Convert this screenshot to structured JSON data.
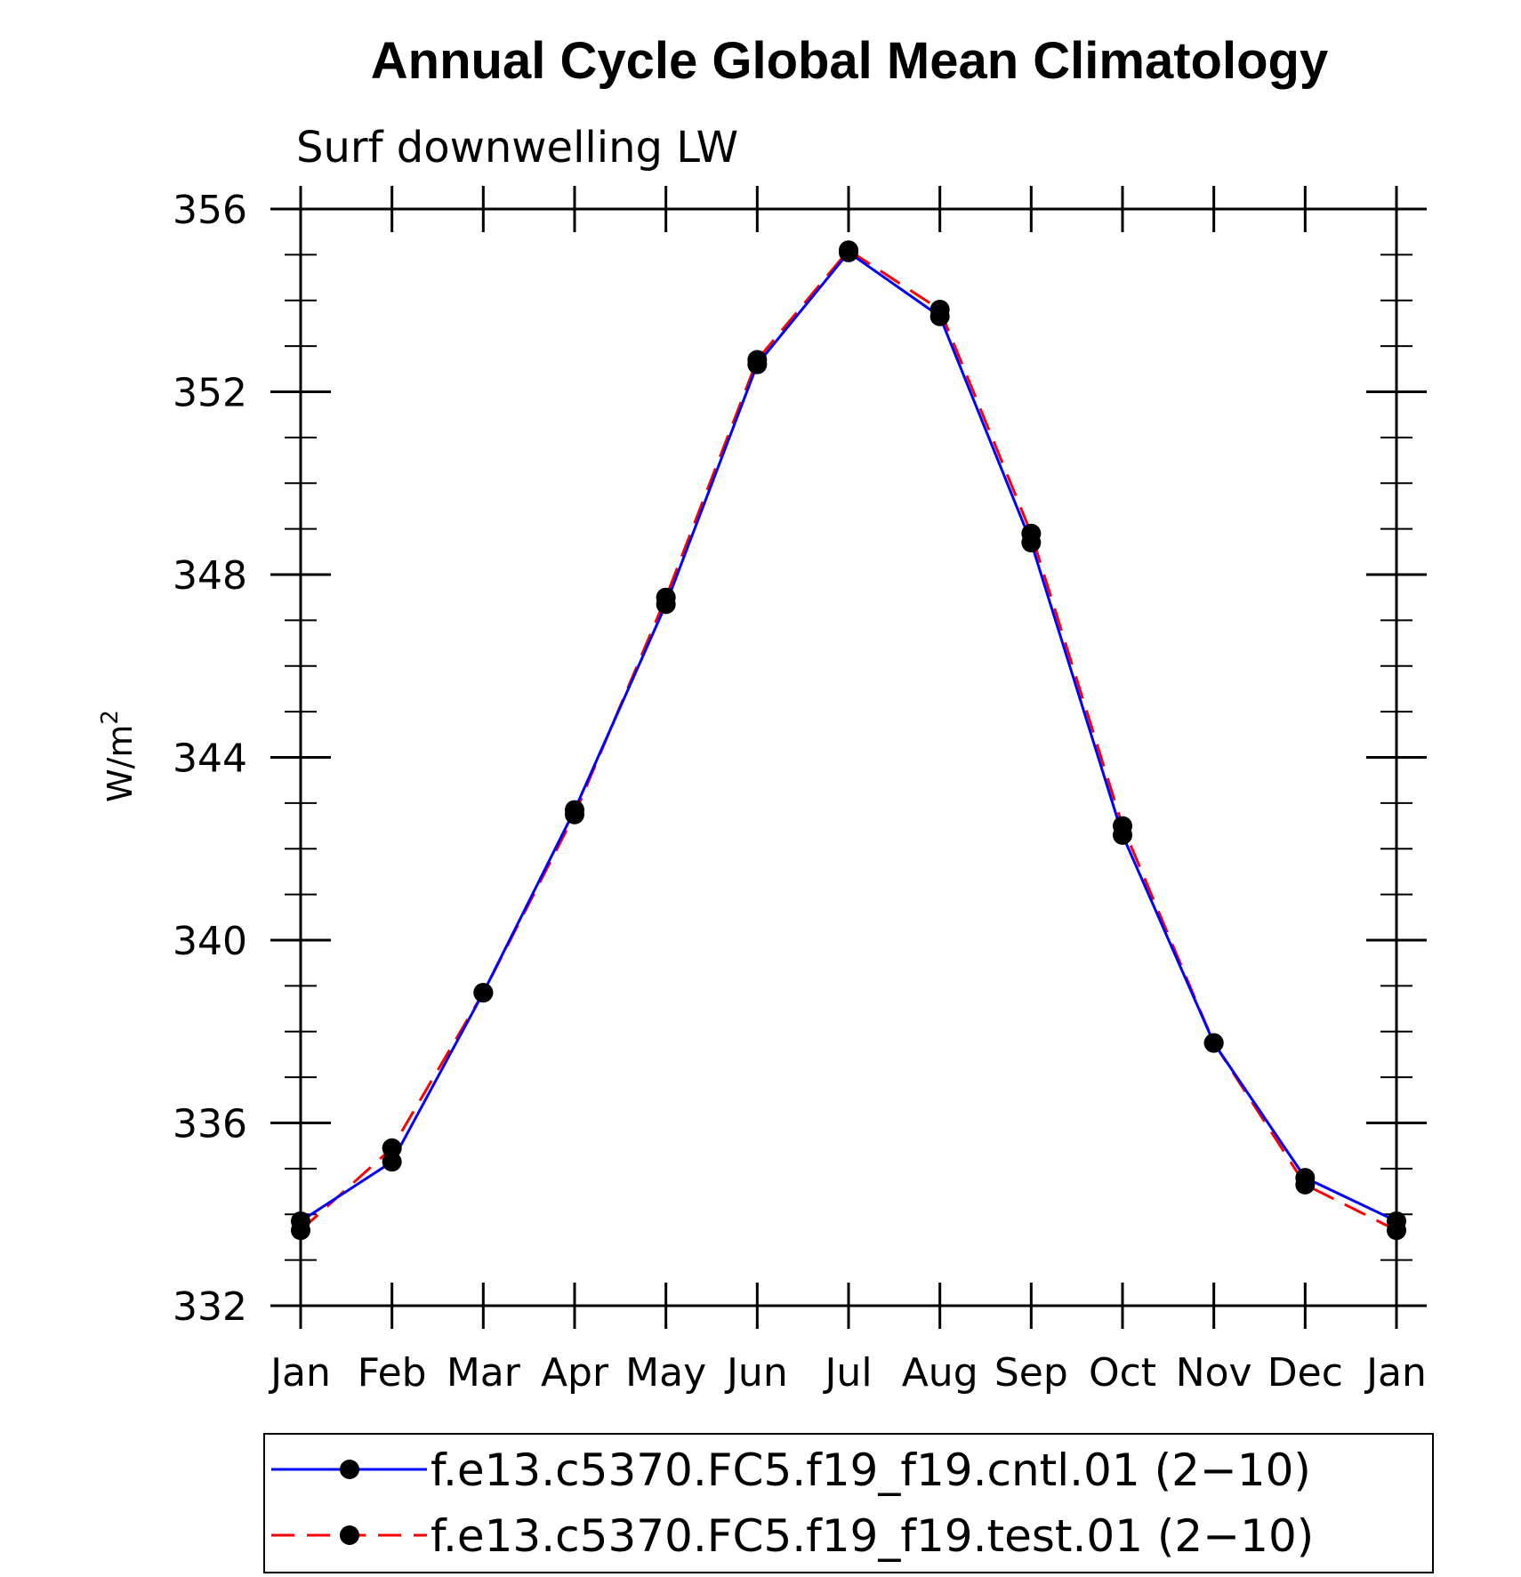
{
  "chart_data": {
    "type": "line",
    "title": "Annual Cycle Global Mean Climatology",
    "subtitle": "Surf downwelling LW",
    "ylabel_base": "W/m",
    "ylabel_sup": "2",
    "xlabel": "",
    "ylim": [
      332,
      356
    ],
    "yticks": [
      332,
      336,
      340,
      344,
      348,
      352,
      356
    ],
    "categories": [
      "Jan",
      "Feb",
      "Mar",
      "Apr",
      "May",
      "Jun",
      "Jul",
      "Aug",
      "Sep",
      "Oct",
      "Nov",
      "Dec",
      "Jan"
    ],
    "series": [
      {
        "name": "f.e13.c5370.FC5.f19_f19.cntl.01 (2−10)",
        "color": "#0000ff",
        "dash": "solid",
        "values": [
          333.85,
          335.15,
          338.85,
          342.85,
          347.35,
          352.6,
          355.05,
          353.65,
          348.7,
          342.3,
          337.75,
          334.8,
          333.85
        ]
      },
      {
        "name": "f.e13.c5370.FC5.f19_f19.test.01 (2−10)",
        "color": "#ff0000",
        "dash": "dashed",
        "values": [
          333.65,
          335.45,
          338.85,
          342.75,
          347.5,
          352.7,
          355.1,
          353.8,
          348.9,
          342.5,
          337.75,
          334.65,
          333.65
        ]
      }
    ],
    "legend_position": "bottom"
  }
}
